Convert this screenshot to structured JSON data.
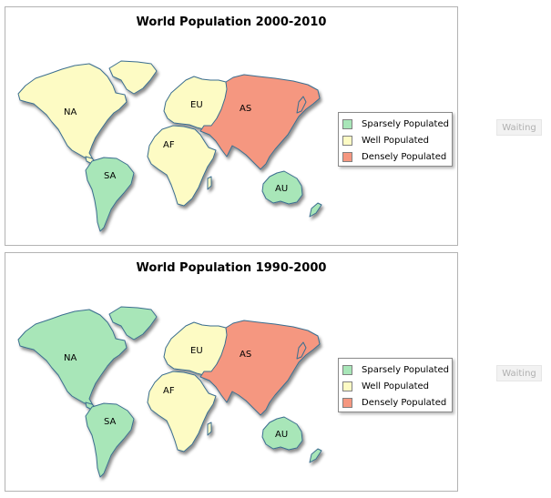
{
  "colors": {
    "sparse": "#a8e6b8",
    "well": "#fdfbc4",
    "dense": "#f59780",
    "border": "#3b6e8f"
  },
  "maps": [
    {
      "title": "World Population 2000-2010",
      "regions": [
        {
          "id": "NA",
          "label": "NA",
          "category": "well"
        },
        {
          "id": "SA",
          "label": "SA",
          "category": "sparse"
        },
        {
          "id": "EU",
          "label": "EU",
          "category": "well"
        },
        {
          "id": "AF",
          "label": "AF",
          "category": "well"
        },
        {
          "id": "AS",
          "label": "AS",
          "category": "dense"
        },
        {
          "id": "AU",
          "label": "AU",
          "category": "sparse"
        }
      ],
      "legend": [
        "Sparsely Populated",
        "Well Populated",
        "Densely Populated"
      ],
      "status": "Waiting"
    },
    {
      "title": "World Population 1990-2000",
      "regions": [
        {
          "id": "NA",
          "label": "NA",
          "category": "sparse"
        },
        {
          "id": "SA",
          "label": "SA",
          "category": "sparse"
        },
        {
          "id": "EU",
          "label": "EU",
          "category": "well"
        },
        {
          "id": "AF",
          "label": "AF",
          "category": "well"
        },
        {
          "id": "AS",
          "label": "AS",
          "category": "dense"
        },
        {
          "id": "AU",
          "label": "AU",
          "category": "sparse"
        }
      ],
      "legend": [
        "Sparsely Populated",
        "Well Populated",
        "Densely Populated"
      ],
      "status": "Waiting"
    }
  ]
}
